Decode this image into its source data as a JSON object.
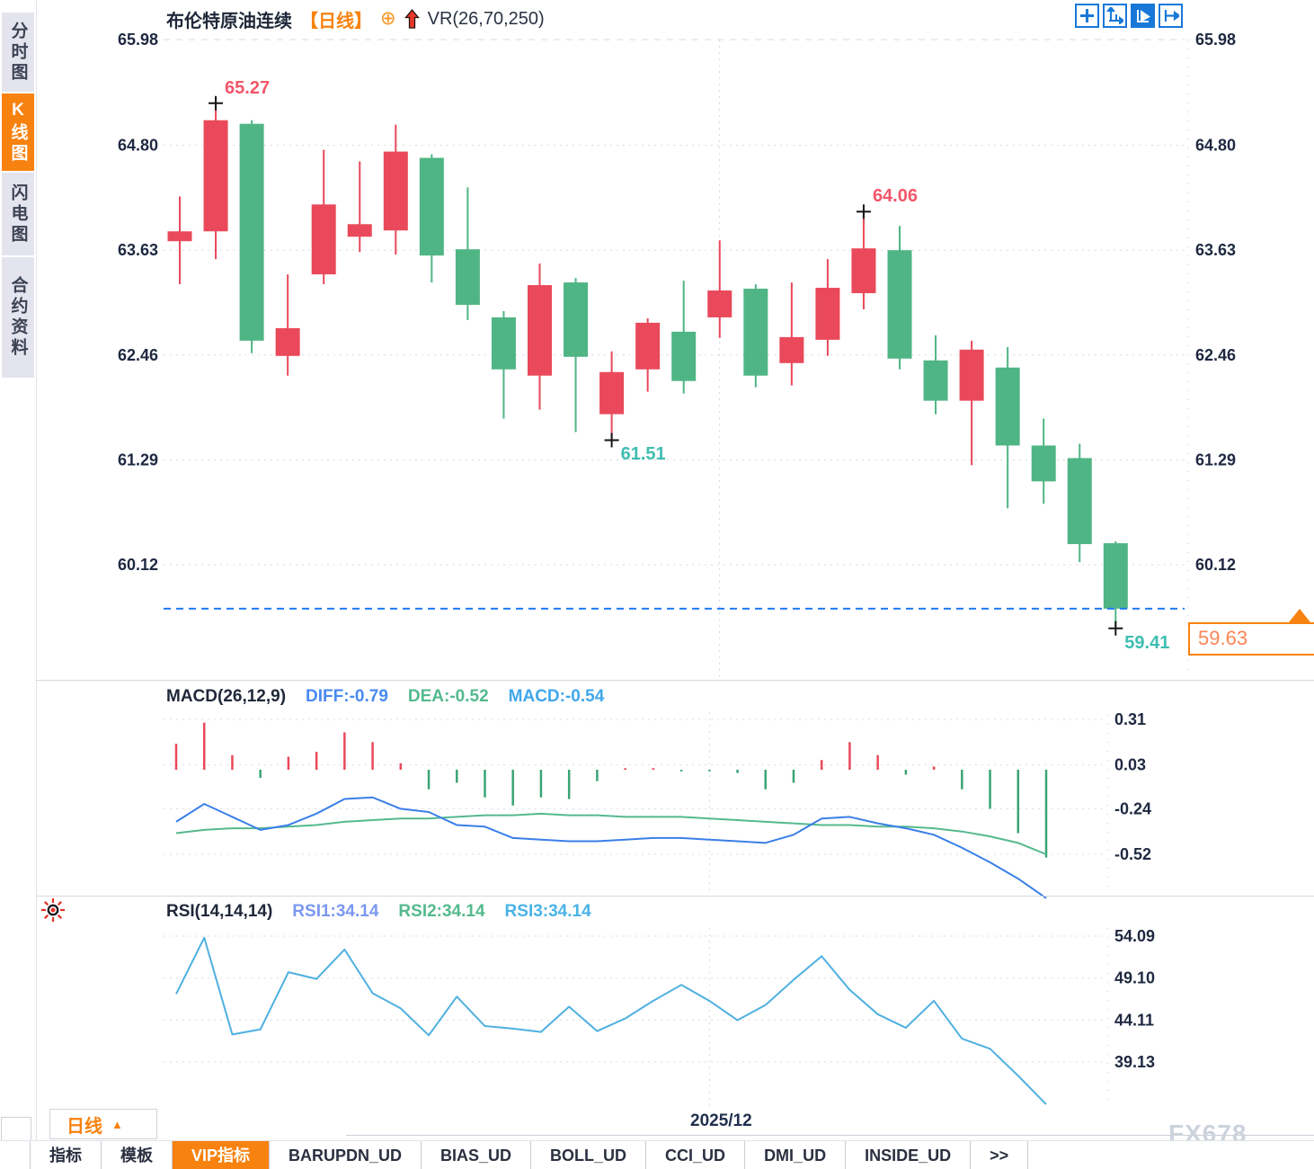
{
  "sidebar": {
    "tabs": [
      {
        "label": "分时图",
        "active": false
      },
      {
        "label": "K线图",
        "active": true
      },
      {
        "label": "闪电图",
        "active": false
      },
      {
        "label": "合约资料",
        "active": false
      }
    ]
  },
  "header": {
    "symbol": "布伦特原油连续",
    "timeframe_tag": "【日线】",
    "overlay_label": "VR(26,70,250)",
    "icons": [
      "circle-plus-icon",
      "red-up-arrow-icon"
    ],
    "toolbar_icons": [
      "crosshair-move-icon",
      "axes-scale-icon",
      "pointer-mode-icon",
      "pan-right-icon"
    ]
  },
  "price_panel": {
    "current_price_label": "59.63"
  },
  "macd_panel": {
    "title": "MACD(26,12,9)",
    "readouts": [
      {
        "text": "DIFF:-0.79",
        "color": "#4a8af0"
      },
      {
        "text": "DEA:-0.52",
        "color": "#55b98e"
      },
      {
        "text": "MACD:-0.54",
        "color": "#41a7ea"
      }
    ]
  },
  "rsi_panel": {
    "title": "RSI(14,14,14)",
    "readouts": [
      {
        "text": "RSI1:34.14",
        "color": "#7b98f0"
      },
      {
        "text": "RSI2:34.14",
        "color": "#55b98e"
      },
      {
        "text": "RSI3:34.14",
        "color": "#49b3e6"
      }
    ]
  },
  "bottom": {
    "timeframe_button": {
      "label": "日线",
      "arrow": "▲"
    },
    "date_label": "2025/12",
    "watermark": "FX678",
    "tabs": [
      {
        "label": "指标",
        "active": false
      },
      {
        "label": "模板",
        "active": false
      },
      {
        "label": "VIP指标",
        "active": true
      },
      {
        "label": "BARUPDN_UD",
        "active": false
      },
      {
        "label": "BIAS_UD",
        "active": false
      },
      {
        "label": "BOLL_UD",
        "active": false
      },
      {
        "label": "CCI_UD",
        "active": false
      },
      {
        "label": "DMI_UD",
        "active": false
      },
      {
        "label": "INSIDE_UD",
        "active": false
      },
      {
        "label": ">>",
        "active": false
      }
    ]
  },
  "chart_data": {
    "type": "candlestick",
    "title": "布伦特原油连续 日线",
    "colors": {
      "up": "#e9495a",
      "down": "#4fb584",
      "diff_line": "#3a7fe8",
      "dea_line": "#55b98e",
      "rsi_line": "#4fb0e0",
      "hist_up": "#e9495a",
      "hist_down": "#3aa475",
      "current_price_line": "#1f7bf0",
      "accent": "#f8820f"
    },
    "y_axis_ticks": [
      "65.98",
      "64.80",
      "63.63",
      "62.46",
      "61.29",
      "60.12"
    ],
    "y_range": [
      65.98,
      60.12
    ],
    "current_price": 59.63,
    "month_label": "2025/12",
    "candles": [
      {
        "o": 63.73,
        "h": 64.23,
        "l": 63.25,
        "c": 63.84
      },
      {
        "o": 63.84,
        "h": 65.27,
        "l": 63.53,
        "c": 65.08
      },
      {
        "o": 65.04,
        "h": 65.08,
        "l": 62.48,
        "c": 62.62
      },
      {
        "o": 62.45,
        "h": 63.36,
        "l": 62.23,
        "c": 62.76
      },
      {
        "o": 63.36,
        "h": 64.75,
        "l": 63.25,
        "c": 64.14
      },
      {
        "o": 63.78,
        "h": 64.62,
        "l": 63.61,
        "c": 63.92
      },
      {
        "o": 63.85,
        "h": 65.03,
        "l": 63.58,
        "c": 64.73
      },
      {
        "o": 64.66,
        "h": 64.7,
        "l": 63.27,
        "c": 63.57
      },
      {
        "o": 63.64,
        "h": 64.33,
        "l": 62.85,
        "c": 63.02
      },
      {
        "o": 62.88,
        "h": 62.95,
        "l": 61.75,
        "c": 62.3
      },
      {
        "o": 62.23,
        "h": 63.48,
        "l": 61.85,
        "c": 63.24
      },
      {
        "o": 63.27,
        "h": 63.32,
        "l": 61.6,
        "c": 62.44
      },
      {
        "o": 61.8,
        "h": 62.5,
        "l": 61.51,
        "c": 62.27
      },
      {
        "o": 62.3,
        "h": 62.87,
        "l": 62.05,
        "c": 62.82
      },
      {
        "o": 62.72,
        "h": 63.29,
        "l": 62.03,
        "c": 62.17
      },
      {
        "o": 62.88,
        "h": 63.74,
        "l": 62.65,
        "c": 63.18
      },
      {
        "o": 63.2,
        "h": 63.25,
        "l": 62.1,
        "c": 62.23
      },
      {
        "o": 62.37,
        "h": 63.27,
        "l": 62.12,
        "c": 62.66
      },
      {
        "o": 62.63,
        "h": 63.53,
        "l": 62.45,
        "c": 63.21
      },
      {
        "o": 63.15,
        "h": 64.06,
        "l": 62.97,
        "c": 63.65
      },
      {
        "o": 63.63,
        "h": 63.9,
        "l": 62.3,
        "c": 62.42
      },
      {
        "o": 62.4,
        "h": 62.68,
        "l": 61.8,
        "c": 61.95
      },
      {
        "o": 61.95,
        "h": 62.62,
        "l": 61.23,
        "c": 62.52
      },
      {
        "o": 62.32,
        "h": 62.55,
        "l": 60.75,
        "c": 61.45
      },
      {
        "o": 61.45,
        "h": 61.75,
        "l": 60.8,
        "c": 61.05
      },
      {
        "o": 61.31,
        "h": 61.47,
        "l": 60.15,
        "c": 60.35
      },
      {
        "o": 60.36,
        "h": 60.38,
        "l": 59.41,
        "c": 59.63
      }
    ],
    "marked_points": [
      {
        "candle": 1,
        "label": "65.27",
        "type": "high"
      },
      {
        "candle": 12,
        "label": "61.51",
        "type": "low"
      },
      {
        "candle": 19,
        "label": "64.06",
        "type": "high"
      },
      {
        "candle": 26,
        "label": "59.41",
        "type": "low"
      }
    ],
    "macd": {
      "params": "26,12,9",
      "diff": -0.79,
      "dea": -0.52,
      "macd": -0.54,
      "axis_ticks": [
        "0.31",
        "0.03",
        "-0.24",
        "-0.52"
      ],
      "hist": [
        0.16,
        0.29,
        0.09,
        -0.05,
        0.08,
        0.11,
        0.23,
        0.17,
        0.04,
        -0.12,
        -0.08,
        -0.17,
        -0.22,
        -0.17,
        -0.18,
        -0.07,
        0.01,
        0.01,
        -0.01,
        -0.01,
        -0.02,
        -0.12,
        -0.08,
        0.06,
        0.17,
        0.09,
        -0.03,
        0.02,
        -0.12,
        -0.24,
        -0.39,
        -0.54
      ],
      "diff_line": [
        -0.32,
        -0.21,
        -0.29,
        -0.37,
        -0.34,
        -0.27,
        -0.18,
        -0.17,
        -0.24,
        -0.26,
        -0.34,
        -0.35,
        -0.42,
        -0.43,
        -0.44,
        -0.44,
        -0.43,
        -0.42,
        -0.42,
        -0.43,
        -0.44,
        -0.45,
        -0.4,
        -0.3,
        -0.29,
        -0.33,
        -0.36,
        -0.4,
        -0.48,
        -0.57,
        -0.67,
        -0.79
      ],
      "dea_line": [
        -0.39,
        -0.37,
        -0.36,
        -0.36,
        -0.35,
        -0.34,
        -0.32,
        -0.31,
        -0.3,
        -0.3,
        -0.29,
        -0.28,
        -0.28,
        -0.27,
        -0.28,
        -0.28,
        -0.29,
        -0.29,
        -0.29,
        -0.3,
        -0.31,
        -0.32,
        -0.33,
        -0.34,
        -0.34,
        -0.35,
        -0.35,
        -0.36,
        -0.38,
        -0.41,
        -0.45,
        -0.52
      ]
    },
    "rsi": {
      "params": "14,14,14",
      "rsi1": 34.14,
      "rsi2": 34.14,
      "rsi3": 34.14,
      "axis_ticks": [
        "54.09",
        "49.10",
        "44.11",
        "39.13"
      ],
      "line": [
        47.2,
        53.9,
        42.4,
        43.0,
        49.8,
        49.0,
        52.5,
        47.3,
        45.5,
        42.3,
        46.9,
        43.4,
        43.1,
        42.7,
        45.7,
        42.8,
        44.3,
        46.4,
        48.3,
        46.4,
        44.1,
        45.9,
        48.9,
        51.7,
        47.7,
        44.8,
        43.2,
        46.4,
        41.9,
        40.7,
        37.5,
        34.1
      ]
    }
  }
}
